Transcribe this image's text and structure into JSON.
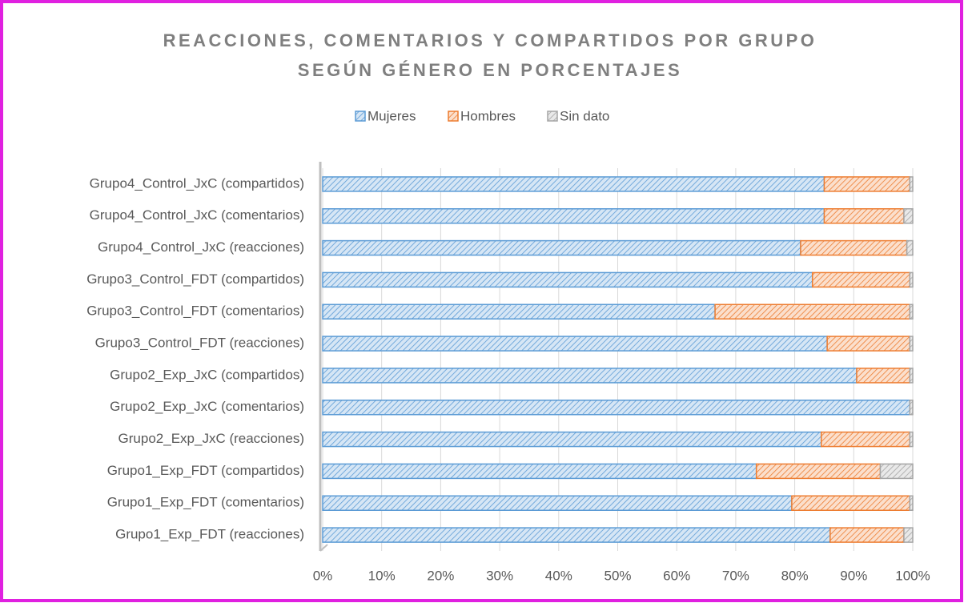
{
  "chart_data": {
    "type": "bar",
    "orientation": "horizontal",
    "stacked": true,
    "title": [
      "REACCIONES, COMENTARIOS Y COMPARTIDOS POR GRUPO",
      "SEGÚN GÉNERO EN PORCENTAJES"
    ],
    "categories": [
      "Grupo1_Exp_FDT (reacciones)",
      "Grupo1_Exp_FDT (comentarios)",
      "Grupo1_Exp_FDT (compartidos)",
      "Grupo2_Exp_JxC (reacciones)",
      "Grupo2_Exp_JxC (comentarios)",
      "Grupo2_Exp_JxC (compartidos)",
      "Grupo3_Control_FDT (reacciones)",
      "Grupo3_Control_FDT (comentarios)",
      "Grupo3_Control_FDT (compartidos)",
      "Grupo4_Control_JxC (reacciones)",
      "Grupo4_Control_JxC (comentarios)",
      "Grupo4_Control_JxC (compartidos)"
    ],
    "series": [
      {
        "name": "Mujeres",
        "color": "#5b9bd5",
        "values": [
          86,
          79.5,
          73.5,
          84.5,
          99.5,
          90.5,
          85.5,
          66.5,
          83,
          81,
          85,
          85
        ]
      },
      {
        "name": "Hombres",
        "color": "#ed7d31",
        "values": [
          12.5,
          20,
          21,
          15,
          0,
          9,
          14,
          33,
          16.5,
          18,
          13.5,
          14.5
        ]
      },
      {
        "name": "Sin dato",
        "color": "#a5a5a5",
        "values": [
          1.5,
          0.5,
          5.5,
          0.5,
          0.5,
          0.5,
          0.5,
          0.5,
          0.5,
          1,
          1.5,
          0.5
        ]
      }
    ],
    "xlim": [
      0,
      100
    ],
    "xticks": [
      {
        "value": 0,
        "label": "0%"
      },
      {
        "value": 10,
        "label": "10%"
      },
      {
        "value": 20,
        "label": "20%"
      },
      {
        "value": 30,
        "label": "30%"
      },
      {
        "value": 40,
        "label": "40%"
      },
      {
        "value": 50,
        "label": "50%"
      },
      {
        "value": 60,
        "label": "60%"
      },
      {
        "value": 70,
        "label": "70%"
      },
      {
        "value": 80,
        "label": "80%"
      },
      {
        "value": 90,
        "label": "90%"
      },
      {
        "value": 100,
        "label": "100%"
      }
    ],
    "grid": true,
    "legend": "top"
  }
}
